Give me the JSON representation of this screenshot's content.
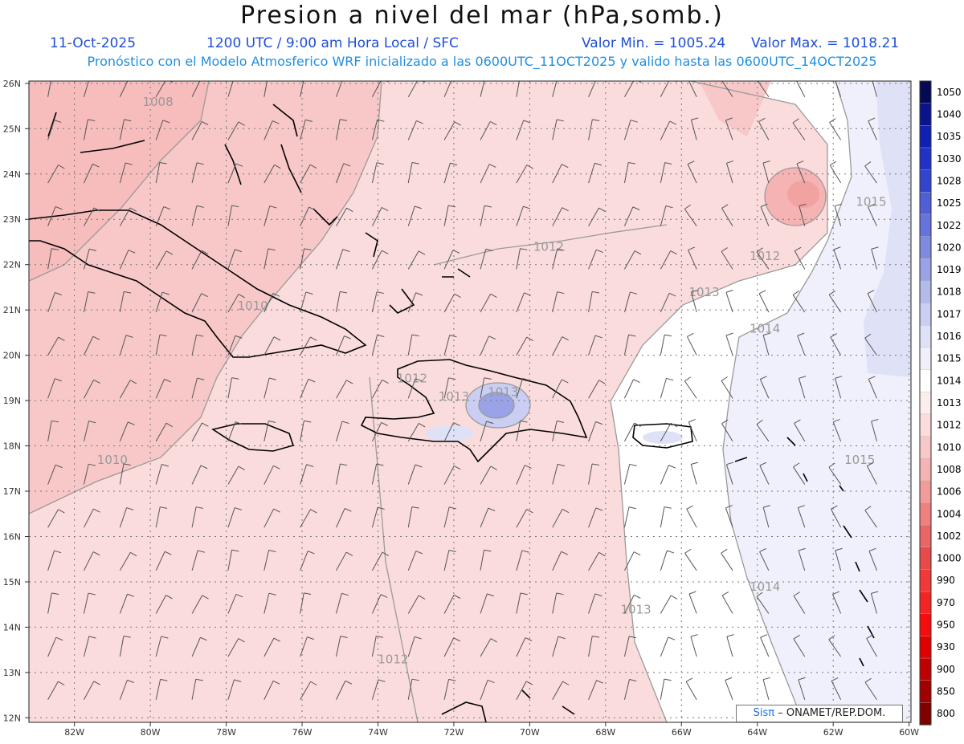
{
  "header": {
    "title": "Presion a nivel del mar (hPa,somb.)",
    "date": "11-Oct-2025",
    "time_info": "1200 UTC / 9:00 am Hora Local / SFC",
    "min_label": "Valor Min. = 1005.24",
    "max_label": "Valor Max. = 1018.21",
    "model_info": "Pronóstico con el Modelo Atmosferico WRF inicializado a las 0600UTC_11OCT2025 y valido hasta las  0600UTC_14OCT2025"
  },
  "axes": {
    "lat_labels": [
      "26N",
      "25N",
      "24N",
      "23N",
      "22N",
      "21N",
      "20N",
      "19N",
      "18N",
      "17N",
      "16N",
      "15N",
      "14N",
      "13N",
      "12N"
    ],
    "lon_labels": [
      "82W",
      "80W",
      "78W",
      "76W",
      "74W",
      "72W",
      "70W",
      "68W",
      "66W",
      "64W",
      "62W",
      "60W"
    ]
  },
  "contour_labels": [
    {
      "text": "1008",
      "lon": -79.8,
      "lat": 25.5
    },
    {
      "text": "1010",
      "lon": -77.3,
      "lat": 21.0
    },
    {
      "text": "1010",
      "lon": -81.0,
      "lat": 17.6
    },
    {
      "text": "1012",
      "lon": -73.1,
      "lat": 19.4
    },
    {
      "text": "1013",
      "lon": -72.0,
      "lat": 19.0
    },
    {
      "text": "1013",
      "lon": -70.7,
      "lat": 19.1
    },
    {
      "text": "1012",
      "lon": -69.5,
      "lat": 22.3
    },
    {
      "text": "1012",
      "lon": -63.8,
      "lat": 22.1
    },
    {
      "text": "1013",
      "lon": -65.4,
      "lat": 21.3
    },
    {
      "text": "1014",
      "lon": -63.8,
      "lat": 20.5
    },
    {
      "text": "1015",
      "lon": -61.0,
      "lat": 23.3
    },
    {
      "text": "1015",
      "lon": -61.3,
      "lat": 17.6
    },
    {
      "text": "1014",
      "lon": -63.8,
      "lat": 14.8
    },
    {
      "text": "1013",
      "lon": -67.2,
      "lat": 14.3
    },
    {
      "text": "1012",
      "lon": -73.6,
      "lat": 13.2
    }
  ],
  "colorbar": {
    "levels": [
      "1050",
      "1040",
      "1035",
      "1030",
      "1028",
      "1025",
      "1022",
      "1020",
      "1019",
      "1018",
      "1017",
      "1016",
      "1015",
      "1014",
      "1013",
      "1012",
      "1010",
      "1008",
      "1006",
      "1004",
      "1002",
      "1000",
      "990",
      "970",
      "950",
      "930",
      "900",
      "850",
      "800"
    ],
    "colors": [
      "#050a55",
      "#0a138c",
      "#1120b4",
      "#2232c8",
      "#3344cf",
      "#4f5fd6",
      "#6673db",
      "#7f8be0",
      "#9aa3e6",
      "#b3baec",
      "#c9cef2",
      "#dfe2f7",
      "#eff0fb",
      "#ffffff",
      "#fdeeee",
      "#fbdcdc",
      "#f8c8c8",
      "#f5b3b3",
      "#f29b9b",
      "#ee8080",
      "#ea6565",
      "#e84a4a",
      "#f03a3a",
      "#f52424",
      "#f50c0c",
      "#e00000",
      "#c00000",
      "#a00000",
      "#800000"
    ]
  },
  "credit": {
    "brand": "Sisπ",
    "text": "– ONAMET/REP.DOM."
  },
  "colors": {
    "land_outline": "#000000",
    "contour": "#9a9a9a",
    "grid": "#777777",
    "title_blue": "#1f4fd6",
    "subtitle_blue": "#1f8fe0"
  }
}
